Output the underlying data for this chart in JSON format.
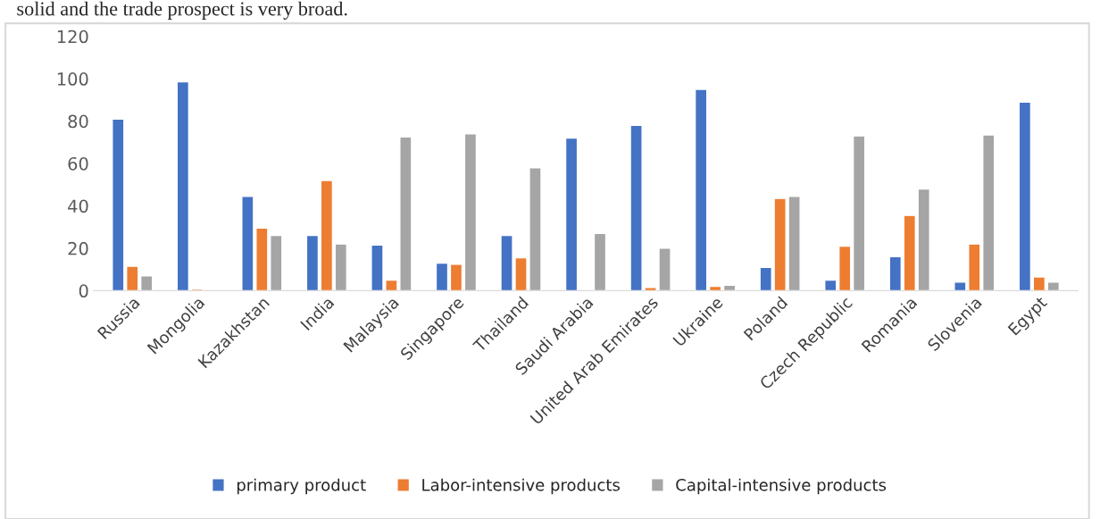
{
  "chart_data": {
    "type": "bar",
    "annotations": [
      "solid and the trade prospect is very broad."
    ],
    "categories": [
      "Russia",
      "Mongolia",
      "Kazakhstan",
      "India",
      "Malaysia",
      "Singapore",
      "Thailand",
      "Saudi Arabia",
      "United Arab Emirates",
      "Ukraine",
      "Poland",
      "Czech Republic",
      "Romania",
      "Slovenia",
      "Egypt"
    ],
    "series": [
      {
        "name": "primary product",
        "color": "#4472c4",
        "values": [
          81,
          98.5,
          44.5,
          26,
          21.5,
          13,
          26,
          72,
          78,
          95,
          11,
          5,
          16,
          4,
          89
        ]
      },
      {
        "name": "Labor-intensive products",
        "color": "#ed7d31",
        "values": [
          11.5,
          0.8,
          29.5,
          52,
          5,
          12.5,
          15.5,
          null,
          1.5,
          2,
          43.5,
          21,
          35.5,
          22,
          6.5
        ]
      },
      {
        "name": "Capital-intensive products",
        "color": "#a5a5a5",
        "values": [
          7,
          null,
          26,
          22,
          72.5,
          74,
          58,
          27,
          20,
          2.5,
          44.5,
          73,
          48,
          73.5,
          4
        ]
      }
    ],
    "ylim": [
      0,
      120
    ],
    "yticks": [
      0,
      20,
      40,
      60,
      80,
      100,
      120
    ],
    "grid": false,
    "legend": "bottom"
  }
}
